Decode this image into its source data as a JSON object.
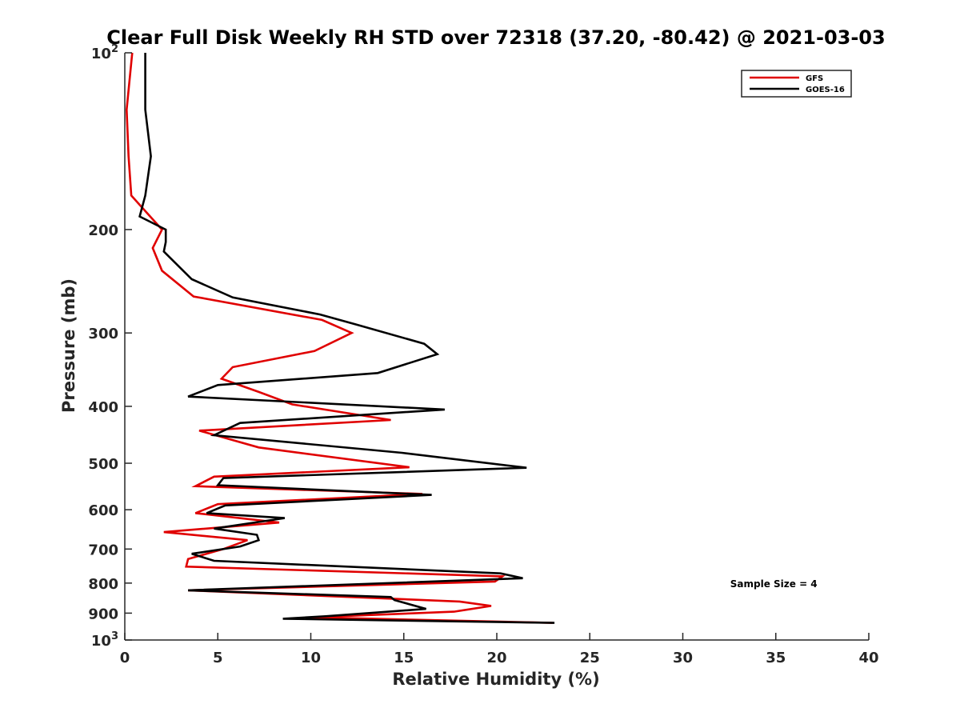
{
  "chart_data": {
    "type": "line",
    "title": "Clear Full Disk Weekly RH STD over 72318 (37.20, -80.42) @ 2021-03-03",
    "xlabel": "Relative Humidity (%)",
    "ylabel": "Pressure (mb)",
    "xlim": [
      0,
      40
    ],
    "ylim": [
      1000,
      100
    ],
    "y_scale": "log",
    "y_reversed": true,
    "grid": false,
    "legend_position": "top-right",
    "x_ticks": [
      "0",
      "5",
      "10",
      "15",
      "20",
      "25",
      "30",
      "35",
      "40"
    ],
    "y_ticks": [
      {
        "value": 100,
        "base": "10",
        "exp": "2"
      },
      {
        "value": 200,
        "label": "200"
      },
      {
        "value": 300,
        "label": "300"
      },
      {
        "value": 400,
        "label": "400"
      },
      {
        "value": 500,
        "label": "500"
      },
      {
        "value": 600,
        "label": "600"
      },
      {
        "value": 700,
        "label": "700"
      },
      {
        "value": 800,
        "label": "800"
      },
      {
        "value": 900,
        "label": "900"
      },
      {
        "value": 1000,
        "base": "10",
        "exp": "3"
      }
    ],
    "series": [
      {
        "name": "GFS",
        "color": "#e00000",
        "points": [
          [
            0.4,
            100
          ],
          [
            0.1,
            125
          ],
          [
            0.2,
            150
          ],
          [
            0.35,
            175
          ],
          [
            2.0,
            200
          ],
          [
            1.5,
            215
          ],
          [
            2.0,
            235
          ],
          [
            3.7,
            260
          ],
          [
            10.6,
            285
          ],
          [
            12.2,
            300
          ],
          [
            10.2,
            322
          ],
          [
            5.8,
            343
          ],
          [
            5.2,
            359
          ],
          [
            7.2,
            378
          ],
          [
            9.0,
            397
          ],
          [
            14.3,
            422
          ],
          [
            4.0,
            440
          ],
          [
            7.2,
            470
          ],
          [
            15.3,
            508
          ],
          [
            4.8,
            527
          ],
          [
            3.8,
            547
          ],
          [
            16.0,
            564
          ],
          [
            5.0,
            587
          ],
          [
            3.8,
            608
          ],
          [
            8.3,
            631
          ],
          [
            2.1,
            655
          ],
          [
            6.6,
            676
          ],
          [
            5.3,
            700
          ],
          [
            3.4,
            728
          ],
          [
            3.3,
            750
          ],
          [
            20.3,
            779
          ],
          [
            19.9,
            795
          ],
          [
            3.4,
            823
          ],
          [
            18.0,
            860
          ],
          [
            19.7,
            875
          ],
          [
            17.7,
            895
          ],
          [
            10.0,
            915
          ],
          [
            23.0,
            935
          ]
        ]
      },
      {
        "name": "GOES-16",
        "color": "#000000",
        "points": [
          [
            1.1,
            100
          ],
          [
            1.1,
            125
          ],
          [
            1.4,
            150
          ],
          [
            1.1,
            175
          ],
          [
            0.8,
            190
          ],
          [
            2.2,
            200
          ],
          [
            2.2,
            210
          ],
          [
            2.1,
            218
          ],
          [
            3.6,
            243
          ],
          [
            5.8,
            261
          ],
          [
            10.5,
            279
          ],
          [
            12.4,
            290
          ],
          [
            16.1,
            313
          ],
          [
            16.8,
            326
          ],
          [
            13.6,
            351
          ],
          [
            5.0,
            368
          ],
          [
            3.4,
            385
          ],
          [
            17.2,
            405
          ],
          [
            6.2,
            427
          ],
          [
            4.8,
            448
          ],
          [
            14.9,
            480
          ],
          [
            21.6,
            509
          ],
          [
            5.3,
            530
          ],
          [
            5.0,
            545
          ],
          [
            16.5,
            566
          ],
          [
            5.4,
            590
          ],
          [
            4.4,
            608
          ],
          [
            8.6,
            620
          ],
          [
            4.8,
            646
          ],
          [
            7.1,
            662
          ],
          [
            7.2,
            676
          ],
          [
            6.2,
            693
          ],
          [
            3.6,
            713
          ],
          [
            4.8,
            733
          ],
          [
            20.2,
            770
          ],
          [
            21.4,
            785
          ],
          [
            3.4,
            823
          ],
          [
            14.3,
            845
          ],
          [
            14.5,
            855
          ],
          [
            16.2,
            885
          ],
          [
            10.8,
            911
          ],
          [
            8.5,
            920
          ],
          [
            23.1,
            935
          ]
        ]
      }
    ],
    "annotations": [
      {
        "text": "Sample Size = 4",
        "x": 35,
        "y": 905
      }
    ]
  }
}
